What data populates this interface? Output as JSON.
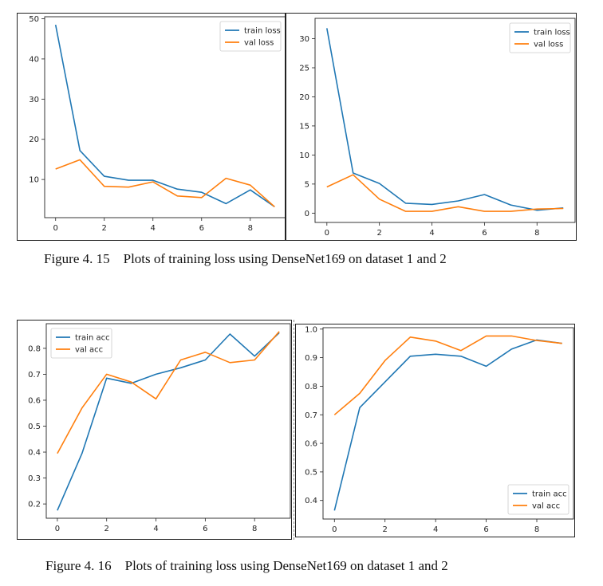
{
  "colors": {
    "train": "#1f77b4",
    "val": "#ff7f0e"
  },
  "captions": [
    "Figure 4. 15    Plots of training loss using DenseNet169 on dataset 1 and 2",
    "Figure 4. 16    Plots of training loss using DenseNet169 on dataset 1 and 2"
  ],
  "chart_data": [
    {
      "type": "line",
      "x": [
        0,
        1,
        2,
        3,
        4,
        5,
        6,
        7,
        8,
        9
      ],
      "xlim": [
        -0.45,
        9.45
      ],
      "ylim": [
        0.5,
        50.5
      ],
      "xticks": [
        0,
        2,
        4,
        6,
        8
      ],
      "xtick_labels": [
        "0",
        "2",
        "4",
        "6",
        "8"
      ],
      "yticks": [
        10,
        20,
        30,
        40,
        50
      ],
      "ytick_labels": [
        "10",
        "20",
        "30",
        "40",
        "50"
      ],
      "legend_position": "top-right",
      "series": [
        {
          "name": "train loss",
          "values": [
            48.5,
            17.2,
            10.8,
            9.8,
            9.8,
            7.6,
            6.8,
            4.0,
            7.4,
            3.2
          ]
        },
        {
          "name": "val loss",
          "values": [
            12.6,
            14.9,
            8.3,
            8.1,
            9.4,
            5.9,
            5.5,
            10.3,
            8.6,
            3.2
          ]
        }
      ]
    },
    {
      "type": "line",
      "x": [
        0,
        1,
        2,
        3,
        4,
        5,
        6,
        7,
        8,
        9
      ],
      "xlim": [
        -0.45,
        9.45
      ],
      "ylim": [
        -1.6,
        33.5
      ],
      "xticks": [
        0,
        2,
        4,
        6,
        8
      ],
      "xtick_labels": [
        "0",
        "2",
        "4",
        "6",
        "8"
      ],
      "yticks": [
        0,
        5,
        10,
        15,
        20,
        25,
        30
      ],
      "ytick_labels": [
        "0",
        "5",
        "10",
        "15",
        "20",
        "25",
        "30"
      ],
      "legend_position": "top-right",
      "series": [
        {
          "name": "train loss",
          "values": [
            31.8,
            6.9,
            5.1,
            1.7,
            1.5,
            2.1,
            3.2,
            1.4,
            0.5,
            0.9
          ]
        },
        {
          "name": "val loss",
          "values": [
            4.5,
            6.6,
            2.4,
            0.3,
            0.3,
            1.1,
            0.3,
            0.3,
            0.7,
            0.8
          ]
        }
      ]
    },
    {
      "type": "line",
      "x": [
        0,
        1,
        2,
        3,
        4,
        5,
        6,
        7,
        8,
        9
      ],
      "xlim": [
        -0.45,
        9.45
      ],
      "ylim": [
        0.145,
        0.895
      ],
      "xticks": [
        0,
        2,
        4,
        6,
        8
      ],
      "xtick_labels": [
        "0",
        "2",
        "4",
        "6",
        "8"
      ],
      "yticks": [
        0.2,
        0.3,
        0.4,
        0.5,
        0.6,
        0.7,
        0.8
      ],
      "ytick_labels": [
        "0.2",
        "0.3",
        "0.4",
        "0.5",
        "0.6",
        "0.7",
        "0.8"
      ],
      "legend_position": "top-left",
      "series": [
        {
          "name": "train acc",
          "values": [
            0.175,
            0.395,
            0.685,
            0.665,
            0.7,
            0.725,
            0.755,
            0.855,
            0.77,
            0.86
          ]
        },
        {
          "name": "val acc",
          "values": [
            0.395,
            0.57,
            0.7,
            0.67,
            0.605,
            0.755,
            0.785,
            0.745,
            0.755,
            0.865
          ]
        }
      ]
    },
    {
      "type": "line",
      "x": [
        0,
        1,
        2,
        3,
        4,
        5,
        6,
        7,
        8,
        9
      ],
      "xlim": [
        -0.45,
        9.45
      ],
      "ylim": [
        0.335,
        1.005
      ],
      "xticks": [
        0,
        2,
        4,
        6,
        8
      ],
      "xtick_labels": [
        "0",
        "2",
        "4",
        "6",
        "8"
      ],
      "yticks": [
        0.4,
        0.5,
        0.6,
        0.7,
        0.8,
        0.9,
        1.0
      ],
      "ytick_labels": [
        "0.4",
        "0.5",
        "0.6",
        "0.7",
        "0.8",
        "0.9",
        "1.0"
      ],
      "legend_position": "bottom-right",
      "series": [
        {
          "name": "train acc",
          "values": [
            0.365,
            0.725,
            0.815,
            0.905,
            0.912,
            0.905,
            0.87,
            0.93,
            0.962,
            0.95
          ]
        },
        {
          "name": "val acc",
          "values": [
            0.7,
            0.775,
            0.89,
            0.972,
            0.958,
            0.925,
            0.976,
            0.976,
            0.96,
            0.95
          ]
        }
      ]
    }
  ]
}
